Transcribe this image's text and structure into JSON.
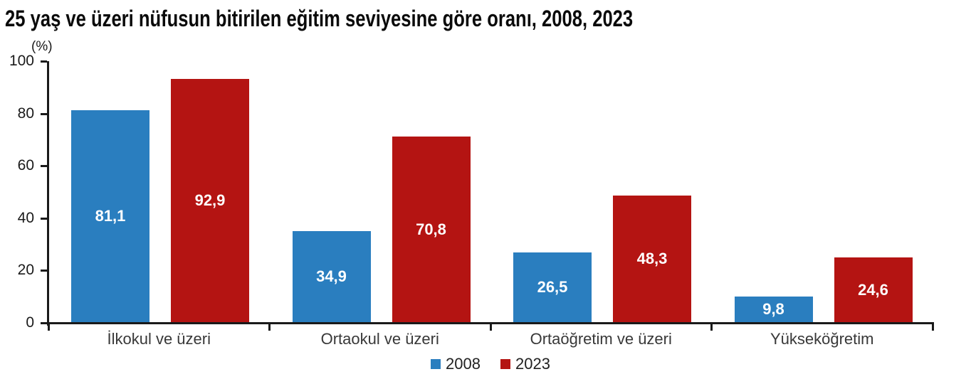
{
  "page": {
    "title": "25 yaş ve üzeri nüfusun bitirilen eğitim seviyesine göre oranı, 2008, 2023"
  },
  "chart_data": {
    "type": "bar",
    "title": "25 yaş ve üzeri nüfusun bitirilen eğitim seviyesine göre oranı, 2008, 2023",
    "ylabel": "(%)",
    "xlabel": "",
    "ylim": [
      0,
      100
    ],
    "yticks": [
      0,
      20,
      40,
      60,
      80,
      100
    ],
    "grid": false,
    "legend_position": "bottom-center",
    "value_labels_inside_bars": true,
    "decimal_separator": ",",
    "categories": [
      "İlkokul ve üzeri",
      "Ortaokul ve üzeri",
      "Ortaöğretim ve üzeri",
      "Yükseköğretim"
    ],
    "series": [
      {
        "name": "2008",
        "color": "#2a7ebf",
        "values": [
          81.1,
          34.9,
          26.5,
          9.8
        ],
        "value_labels": [
          "81,1",
          "34,9",
          "26,5",
          "9,8"
        ]
      },
      {
        "name": "2023",
        "color": "#b41412",
        "values": [
          92.9,
          70.8,
          48.3,
          24.6
        ],
        "value_labels": [
          "92,9",
          "70,8",
          "48,3",
          "24,6"
        ]
      }
    ],
    "colors": {
      "axis": "#1a1a1a",
      "tick_label": "#1a1a1a",
      "category_label": "#383838",
      "value_label": "#ffffff"
    }
  }
}
